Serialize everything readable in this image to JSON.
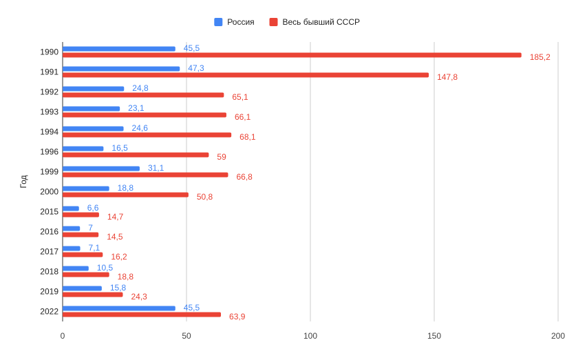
{
  "chart_data": {
    "type": "bar",
    "orientation": "horizontal",
    "title": "",
    "xlabel": "",
    "ylabel": "Год",
    "categories": [
      "1990",
      "1991",
      "1992",
      "1993",
      "1994",
      "1996",
      "1999",
      "2000",
      "2015",
      "2016",
      "2017",
      "2018",
      "2019",
      "2022"
    ],
    "series": [
      {
        "name": "Россия",
        "color": "#4285f4",
        "values": [
          45.5,
          47.3,
          24.8,
          23.1,
          24.6,
          16.5,
          31.1,
          18.8,
          6.6,
          7,
          7.1,
          10.5,
          15.8,
          45.5
        ],
        "labels": [
          "45,5",
          "47,3",
          "24,8",
          "23,1",
          "24,6",
          "16,5",
          "31,1",
          "18,8",
          "6,6",
          "7",
          "7,1",
          "10,5",
          "15,8",
          "45,5"
        ]
      },
      {
        "name": "Весь бывший СССР",
        "color": "#ea4335",
        "values": [
          185.2,
          147.8,
          65.1,
          66.1,
          68.1,
          59,
          66.8,
          50.8,
          14.7,
          14.5,
          16.2,
          18.8,
          24.3,
          63.9
        ],
        "labels": [
          "185,2",
          "147,8",
          "65,1",
          "66,1",
          "68,1",
          "59",
          "66,8",
          "50,8",
          "14,7",
          "14,5",
          "16,2",
          "18,8",
          "24,3",
          "63,9"
        ]
      }
    ],
    "xlim": [
      0,
      200
    ],
    "xticks": [
      "0",
      "50",
      "100",
      "150",
      "200"
    ],
    "grid": true,
    "legend": "top"
  }
}
